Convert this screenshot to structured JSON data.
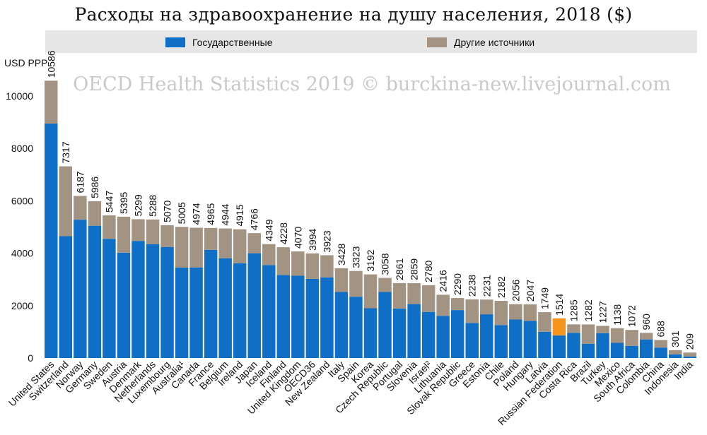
{
  "page": {
    "title": "Расходы на здравоохранение на душу населения, 2018 ($)",
    "watermark": "OECD Health Statistics 2019 © burckina-new.livejournal.com"
  },
  "colors": {
    "government": "#0f6fc6",
    "other": "#a39382",
    "highlight": "#f7941d",
    "highlight_label": "#e2211c",
    "legend_background": "#e6e6e6",
    "grid": "#ffffff"
  },
  "chart_data": {
    "type": "bar",
    "stacked": true,
    "title": "Расходы на здравоохранение на душу населения, 2018 ($)",
    "ylabel": "USD PPP",
    "xlabel": "",
    "ylim": [
      0,
      11000
    ],
    "yticks": [
      0,
      2000,
      4000,
      6000,
      8000,
      10000
    ],
    "grid": false,
    "legend_position": "top",
    "highlight_category": "Russian Federation",
    "categories": [
      "United States",
      "Switzerland",
      "Norway",
      "Germany",
      "Sweden",
      "Austria",
      "Denmark",
      "Netherlands",
      "Luxembourg",
      "Australia¹",
      "Canada",
      "France",
      "Belgium",
      "Ireland",
      "Japan",
      "Iceland",
      "Finland",
      "United Kingdom",
      "OECD36",
      "New Zealand",
      "Italy",
      "Spain",
      "Korea",
      "Czech Republic",
      "Portugal",
      "Slovenia",
      "Israel²",
      "Lithuania",
      "Slovak Republic",
      "Greece",
      "Estonia",
      "Chile",
      "Poland",
      "Hungary",
      "Latvia",
      "Russian Federation",
      "Costa Rica",
      "Brazil",
      "Turkey",
      "Mexico",
      "South Africa",
      "Colombia",
      "China",
      "Indonesia",
      "India"
    ],
    "totals": [
      10586,
      7317,
      6187,
      5986,
      5447,
      5395,
      5299,
      5288,
      5070,
      5005,
      4974,
      4965,
      4944,
      4915,
      4766,
      4349,
      4228,
      4070,
      3994,
      3923,
      3428,
      3323,
      3192,
      3058,
      2861,
      2859,
      2780,
      2416,
      2290,
      2238,
      2231,
      2182,
      2056,
      2047,
      1749,
      1514,
      1285,
      1282,
      1227,
      1138,
      1072,
      960,
      688,
      301,
      209
    ],
    "series": [
      {
        "name": "Государственные",
        "values": [
          8950,
          4650,
          5280,
          5050,
          4550,
          4020,
          4470,
          4340,
          4240,
          3450,
          3460,
          4130,
          3810,
          3620,
          4000,
          3550,
          3170,
          3140,
          3020,
          3080,
          2520,
          2340,
          1900,
          2520,
          1890,
          2060,
          1760,
          1610,
          1830,
          1340,
          1670,
          1260,
          1470,
          1420,
          1000,
          860,
          960,
          540,
          950,
          580,
          460,
          710,
          400,
          140,
          60
        ]
      },
      {
        "name": "Другие источники",
        "values": [
          1636,
          2667,
          907,
          936,
          897,
          1375,
          829,
          948,
          830,
          1555,
          1514,
          835,
          1134,
          1295,
          766,
          799,
          1058,
          930,
          974,
          843,
          908,
          983,
          1292,
          538,
          971,
          799,
          1020,
          806,
          460,
          898,
          561,
          922,
          586,
          627,
          749,
          654,
          325,
          742,
          277,
          558,
          612,
          250,
          288,
          161,
          149
        ]
      }
    ]
  }
}
